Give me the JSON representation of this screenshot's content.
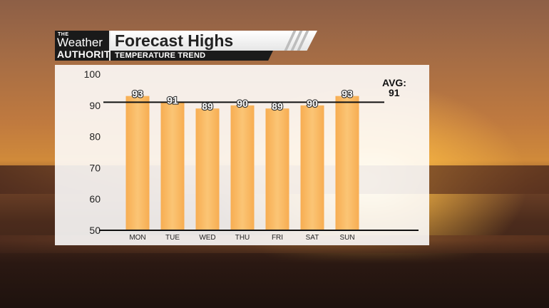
{
  "header": {
    "logo_the": "THE",
    "logo_weather": "Weather",
    "logo_authority": "AUTHORITY",
    "title": "Forecast Highs",
    "subtitle": "TEMPERATURE TREND"
  },
  "colors": {
    "bar_fill": "#f7ad52",
    "bar_fill_light": "#fbc575",
    "avg_line": "#111111"
  },
  "chart_data": {
    "type": "bar",
    "title": "Forecast Highs",
    "subtitle": "TEMPERATURE TREND",
    "categories": [
      "MON",
      "TUE",
      "WED",
      "THU",
      "FRI",
      "SAT",
      "SUN"
    ],
    "values": [
      93,
      91,
      89,
      90,
      89,
      90,
      93
    ],
    "value_labels": [
      "93",
      "91",
      "89",
      "90",
      "89",
      "90",
      "93"
    ],
    "ylim": [
      50,
      100
    ],
    "yticks": [
      "50",
      "60",
      "70",
      "80",
      "90",
      "100"
    ],
    "average": {
      "label_line1": "AVG:",
      "label_line2": "91",
      "value": 91
    },
    "grid": false,
    "legend": "none"
  }
}
